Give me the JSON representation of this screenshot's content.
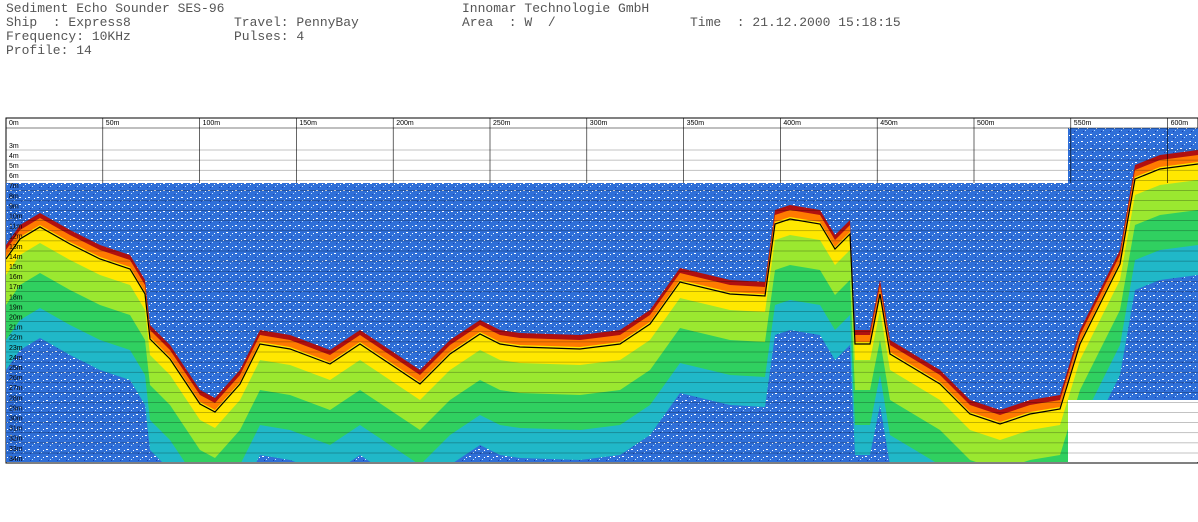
{
  "header": {
    "title": "Sediment Echo Sounder SES-96",
    "company": "Innomar Technologie GmbH",
    "ship": "Ship  : Express8",
    "travel": "Travel: PennyBay",
    "area": "Area  : W  /",
    "time": "Time  : 21.12.2000 15:18:15",
    "frequency": "Frequency: 10KHz",
    "pulses": "Pulses: 4",
    "profile": "Profile: 14"
  },
  "distance_labels": [
    "0m",
    "50m",
    "100m",
    "150m",
    "200m",
    "250m",
    "300m",
    "350m",
    "400m",
    "450m",
    "500m",
    "550m",
    "600m"
  ],
  "depth_labels": [
    "3m",
    "4m",
    "5m",
    "6m",
    "7m",
    "8m",
    "9m",
    "10m",
    "11m",
    "12m",
    "13m",
    "14m",
    "15m",
    "16m",
    "17m",
    "18m",
    "19m",
    "20m",
    "21m",
    "22m",
    "23m",
    "24m",
    "25m",
    "26m",
    "27m",
    "28m",
    "29m",
    "30m",
    "31m",
    "32m",
    "33m",
    "34m"
  ]
}
